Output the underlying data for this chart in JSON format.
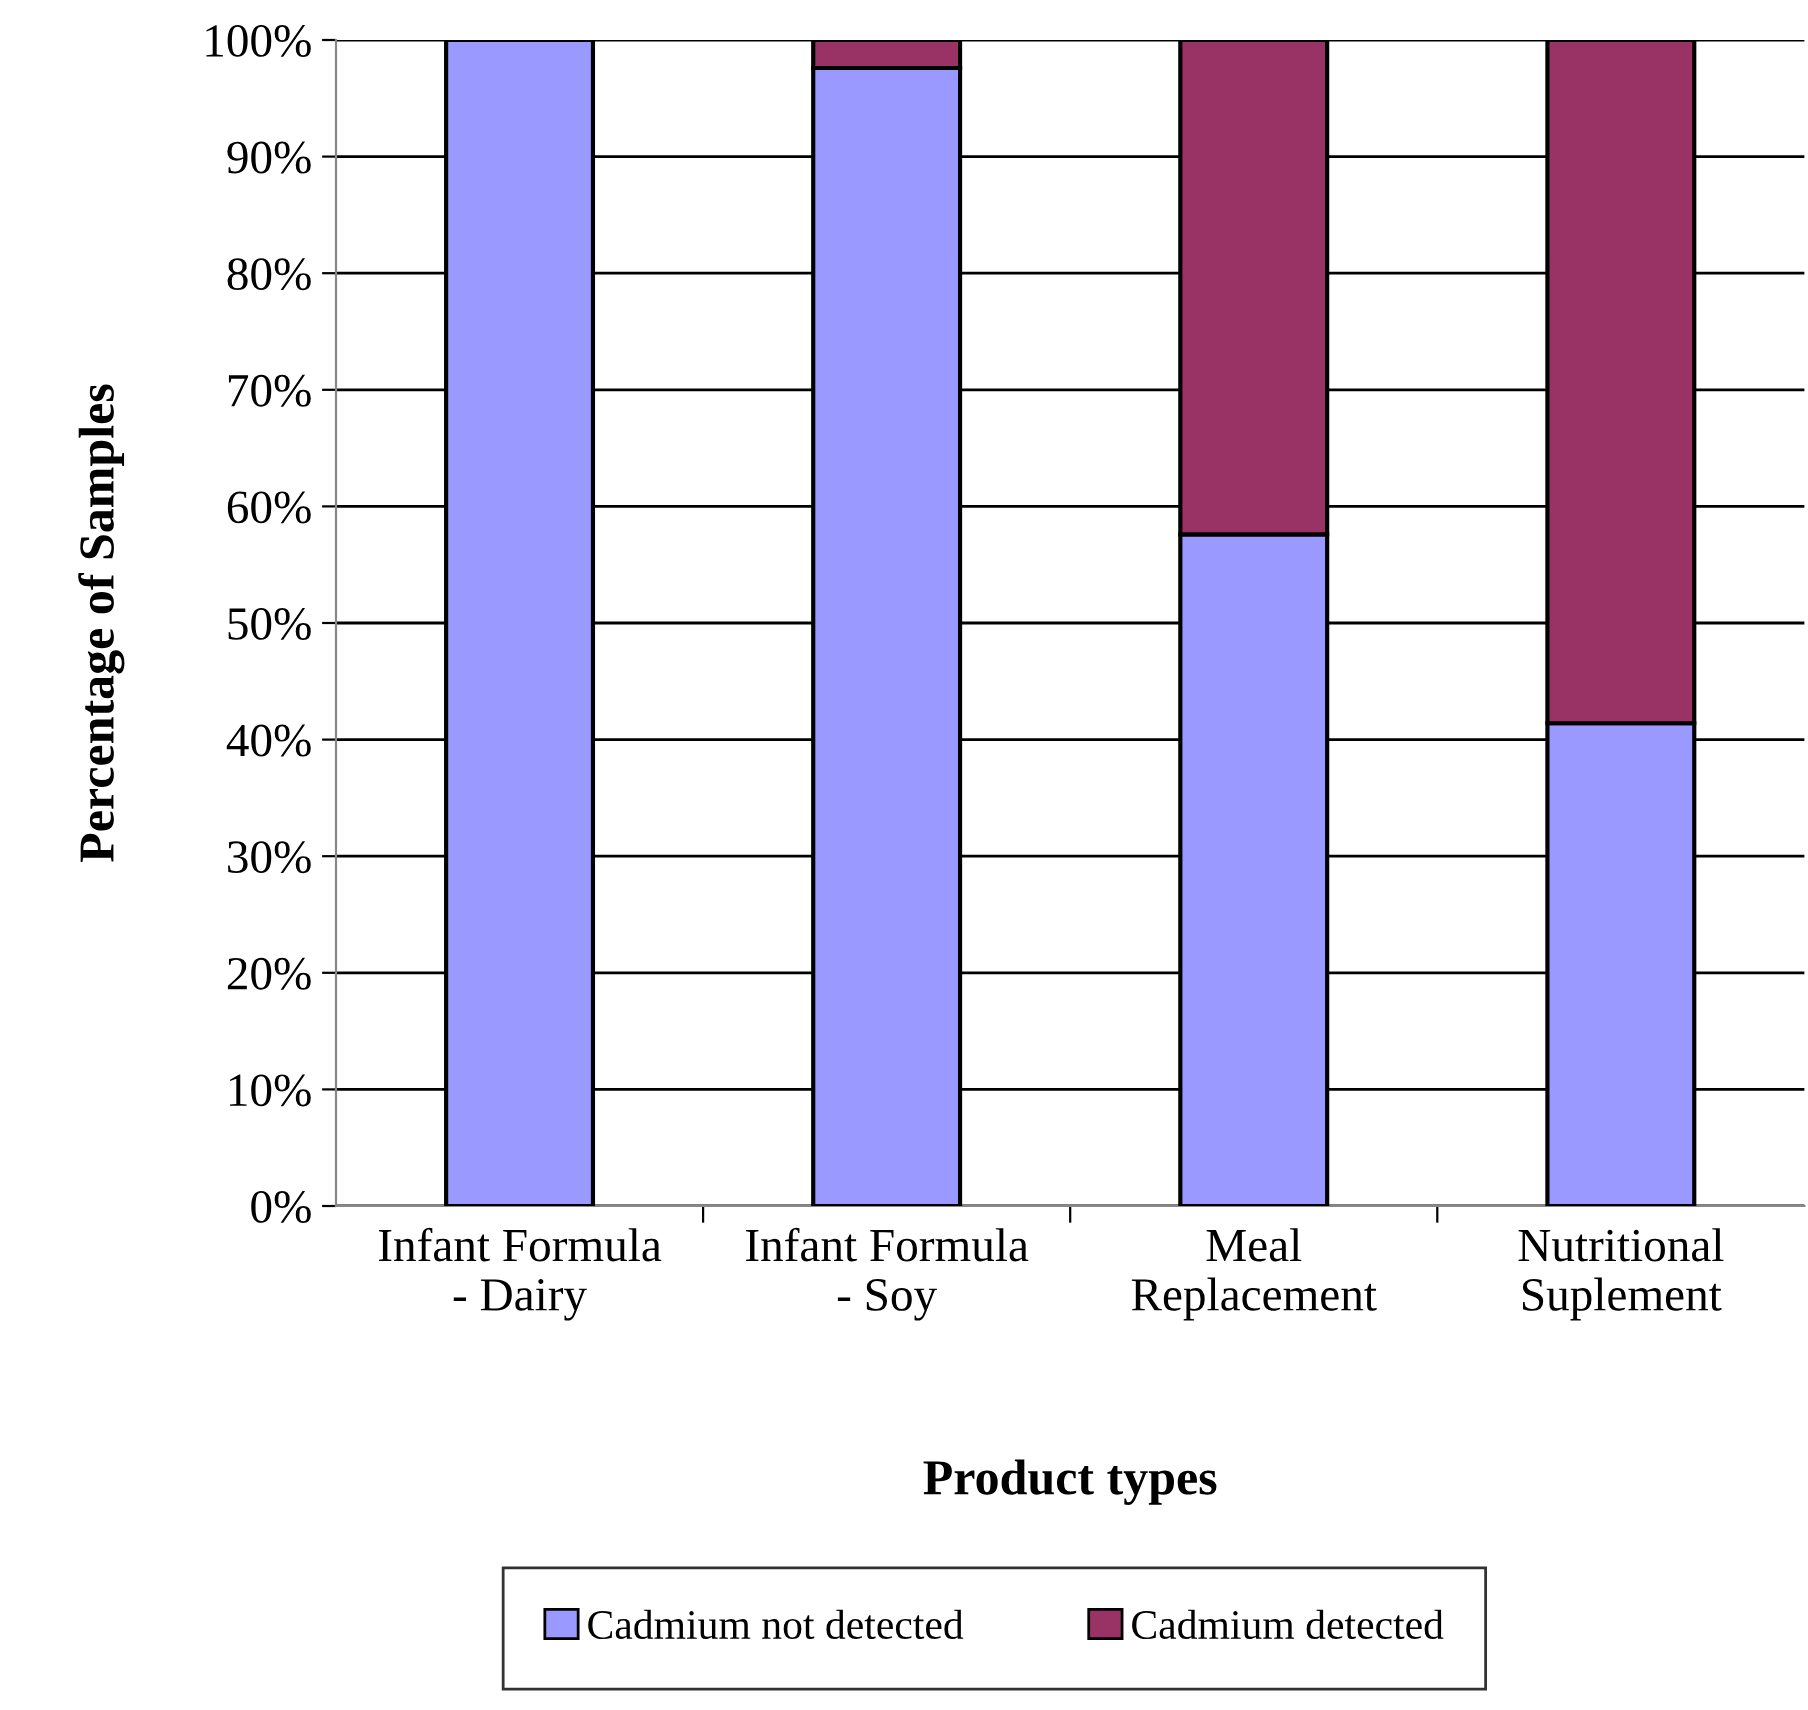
{
  "chart_data": {
    "type": "bar",
    "stacked": true,
    "xlabel": "Product types",
    "ylabel": "Percentage of Samples",
    "categories": [
      "Infant Formula\n- Dairy",
      "Infant Formula\n- Soy",
      "Meal\nReplacement",
      "Nutritional\nSuplement"
    ],
    "series": [
      {
        "name": "Cadmium not detected",
        "color": "#9999ff",
        "values": [
          100,
          97.6,
          57.6,
          41.4
        ]
      },
      {
        "name": "Cadmium detected",
        "color": "#993366",
        "values": [
          null,
          2.4,
          42.4,
          58.6
        ]
      }
    ],
    "ylim": [
      0,
      100
    ],
    "yticks": [
      {
        "value": 0,
        "label": "0%"
      },
      {
        "value": 10,
        "label": "10%"
      },
      {
        "value": 20,
        "label": "20%"
      },
      {
        "value": 30,
        "label": "30%"
      },
      {
        "value": 40,
        "label": "40%"
      },
      {
        "value": 50,
        "label": "50%"
      },
      {
        "value": 60,
        "label": "60%"
      },
      {
        "value": 70,
        "label": "70%"
      },
      {
        "value": 80,
        "label": "80%"
      },
      {
        "value": 90,
        "label": "90%"
      },
      {
        "value": 100,
        "label": "100%"
      }
    ],
    "grid": "y",
    "legend": "bottom"
  }
}
